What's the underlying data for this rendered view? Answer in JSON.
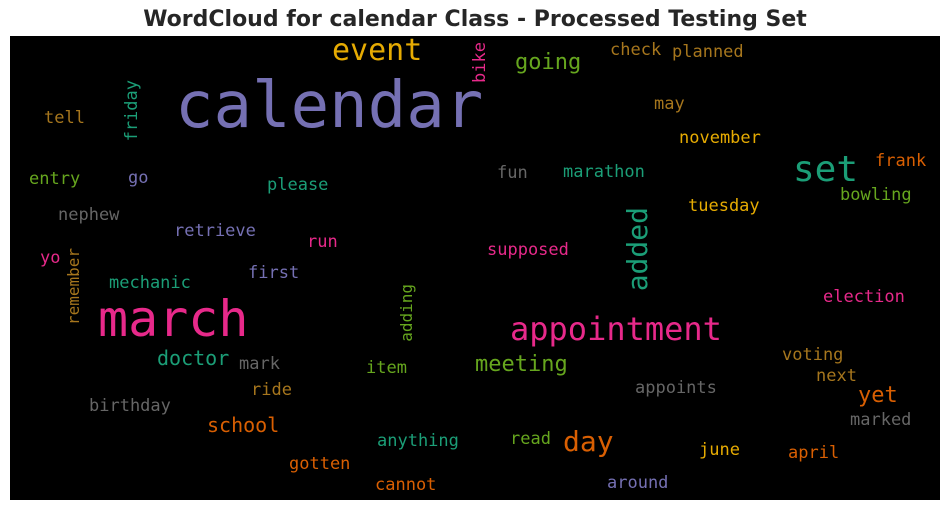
{
  "chart_data": {
    "type": "wordcloud",
    "title": "WordCloud for calendar Class - Processed Testing Set",
    "background": "#000000",
    "words": [
      {
        "text": "calendar",
        "color": "#7570b3",
        "weight": 100,
        "orientation": "horizontal"
      },
      {
        "text": "march",
        "color": "#e7298a",
        "weight": 70,
        "orientation": "horizontal"
      },
      {
        "text": "appointment",
        "color": "#e7298a",
        "weight": 50,
        "orientation": "horizontal"
      },
      {
        "text": "set",
        "color": "#1b9e77",
        "weight": 50,
        "orientation": "horizontal"
      },
      {
        "text": "event",
        "color": "#e6ab02",
        "weight": 44,
        "orientation": "horizontal"
      },
      {
        "text": "added",
        "color": "#1b9e77",
        "weight": 42,
        "orientation": "vertical"
      },
      {
        "text": "day",
        "color": "#d95f02",
        "weight": 38,
        "orientation": "horizontal"
      },
      {
        "text": "going",
        "color": "#66a61e",
        "weight": 32,
        "orientation": "horizontal"
      },
      {
        "text": "meeting",
        "color": "#66a61e",
        "weight": 32,
        "orientation": "horizontal"
      },
      {
        "text": "doctor",
        "color": "#1b9e77",
        "weight": 30,
        "orientation": "horizontal"
      },
      {
        "text": "school",
        "color": "#d95f02",
        "weight": 30,
        "orientation": "horizontal"
      },
      {
        "text": "yet",
        "color": "#d95f02",
        "weight": 30,
        "orientation": "horizontal"
      },
      {
        "text": "tuesday",
        "color": "#e6ab02",
        "weight": 26,
        "orientation": "horizontal"
      },
      {
        "text": "november",
        "color": "#e6ab02",
        "weight": 24,
        "orientation": "horizontal"
      },
      {
        "text": "marathon",
        "color": "#1b9e77",
        "weight": 24,
        "orientation": "horizontal"
      },
      {
        "text": "check",
        "color": "#a6761d",
        "weight": 24,
        "orientation": "horizontal"
      },
      {
        "text": "planned",
        "color": "#a6761d",
        "weight": 24,
        "orientation": "horizontal"
      },
      {
        "text": "bowling",
        "color": "#66a61e",
        "weight": 24,
        "orientation": "horizontal"
      },
      {
        "text": "frank",
        "color": "#d95f02",
        "weight": 24,
        "orientation": "horizontal"
      },
      {
        "text": "may",
        "color": "#a6761d",
        "weight": 22,
        "orientation": "horizontal"
      },
      {
        "text": "please",
        "color": "#1b9e77",
        "weight": 22,
        "orientation": "horizontal"
      },
      {
        "text": "fun",
        "color": "#666666",
        "weight": 22,
        "orientation": "horizontal"
      },
      {
        "text": "supposed",
        "color": "#e7298a",
        "weight": 22,
        "orientation": "horizontal"
      },
      {
        "text": "election",
        "color": "#e7298a",
        "weight": 22,
        "orientation": "horizontal"
      },
      {
        "text": "voting",
        "color": "#a6761d",
        "weight": 22,
        "orientation": "horizontal"
      },
      {
        "text": "next",
        "color": "#a6761d",
        "weight": 22,
        "orientation": "horizontal"
      },
      {
        "text": "appoints",
        "color": "#666666",
        "weight": 22,
        "orientation": "horizontal"
      },
      {
        "text": "marked",
        "color": "#666666",
        "weight": 22,
        "orientation": "horizontal"
      },
      {
        "text": "april",
        "color": "#d95f02",
        "weight": 22,
        "orientation": "horizontal"
      },
      {
        "text": "june",
        "color": "#e6ab02",
        "weight": 22,
        "orientation": "horizontal"
      },
      {
        "text": "around",
        "color": "#7570b3",
        "weight": 22,
        "orientation": "horizontal"
      },
      {
        "text": "read",
        "color": "#66a61e",
        "weight": 22,
        "orientation": "horizontal"
      },
      {
        "text": "anything",
        "color": "#1b9e77",
        "weight": 22,
        "orientation": "horizontal"
      },
      {
        "text": "cannot",
        "color": "#d95f02",
        "weight": 22,
        "orientation": "horizontal"
      },
      {
        "text": "gotten",
        "color": "#d95f02",
        "weight": 22,
        "orientation": "horizontal"
      },
      {
        "text": "item",
        "color": "#66a61e",
        "weight": 22,
        "orientation": "horizontal"
      },
      {
        "text": "mark",
        "color": "#666666",
        "weight": 22,
        "orientation": "horizontal"
      },
      {
        "text": "ride",
        "color": "#a6761d",
        "weight": 22,
        "orientation": "horizontal"
      },
      {
        "text": "birthday",
        "color": "#666666",
        "weight": 22,
        "orientation": "horizontal"
      },
      {
        "text": "mechanic",
        "color": "#1b9e77",
        "weight": 22,
        "orientation": "horizontal"
      },
      {
        "text": "first",
        "color": "#7570b3",
        "weight": 22,
        "orientation": "horizontal"
      },
      {
        "text": "run",
        "color": "#e7298a",
        "weight": 22,
        "orientation": "horizontal"
      },
      {
        "text": "retrieve",
        "color": "#7570b3",
        "weight": 22,
        "orientation": "horizontal"
      },
      {
        "text": "nephew",
        "color": "#666666",
        "weight": 22,
        "orientation": "horizontal"
      },
      {
        "text": "yo",
        "color": "#e7298a",
        "weight": 22,
        "orientation": "horizontal"
      },
      {
        "text": "entry",
        "color": "#66a61e",
        "weight": 22,
        "orientation": "horizontal"
      },
      {
        "text": "go",
        "color": "#7570b3",
        "weight": 22,
        "orientation": "horizontal"
      },
      {
        "text": "tell",
        "color": "#a6761d",
        "weight": 22,
        "orientation": "horizontal"
      },
      {
        "text": "friday",
        "color": "#1b9e77",
        "weight": 22,
        "orientation": "vertical"
      },
      {
        "text": "bike",
        "color": "#e7298a",
        "weight": 22,
        "orientation": "vertical"
      },
      {
        "text": "remember",
        "color": "#a6761d",
        "weight": 20,
        "orientation": "vertical"
      },
      {
        "text": "adding",
        "color": "#66a61e",
        "weight": 20,
        "orientation": "vertical"
      }
    ]
  }
}
